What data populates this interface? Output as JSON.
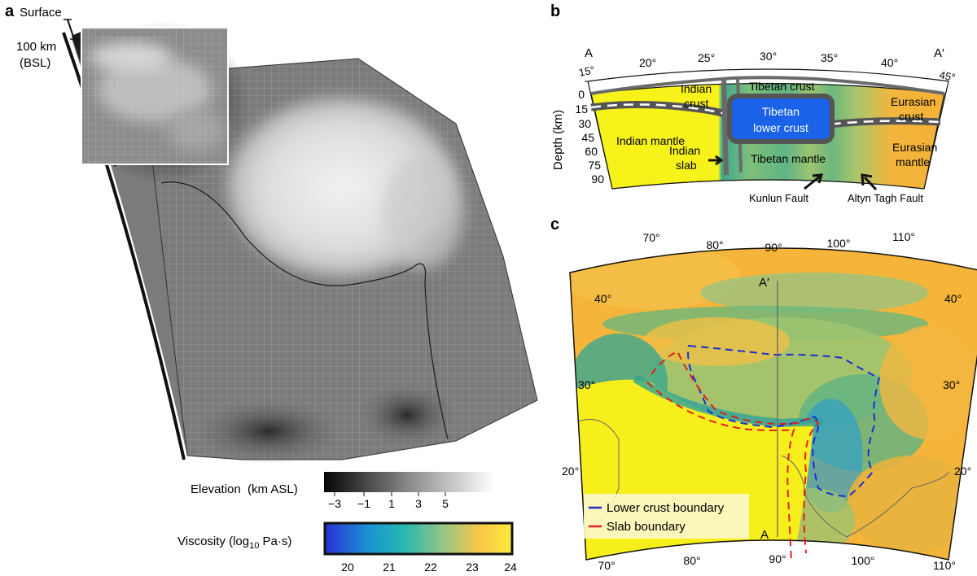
{
  "panels": {
    "a": {
      "letter": "a",
      "surface_label": "Surface",
      "depth_label_1": "100 km",
      "depth_label_2": "(BSL)",
      "elevation_bar": {
        "title": "Elevation  (km ASL)",
        "ticks": [
          "−3",
          "−1",
          "1",
          "3",
          "5"
        ]
      },
      "viscosity_bar": {
        "title_prefix": "Viscosity (log",
        "title_sub": "10",
        "title_suffix": " Pa·s)",
        "ticks": [
          "20",
          "21",
          "22",
          "23",
          "24"
        ],
        "colors": [
          "#2a2fd6",
          "#1b8fd6",
          "#25b8b0",
          "#8fc58a",
          "#f7c84a",
          "#fde93a"
        ]
      }
    },
    "b": {
      "letter": "b",
      "endpoint_left": "A",
      "endpoint_right": "A′",
      "lat_ticks": [
        "15°",
        "20°",
        "25°",
        "30°",
        "35°",
        "40°",
        "45°"
      ],
      "depth_ticks": [
        "0",
        "15",
        "30",
        "45",
        "60",
        "75",
        "90"
      ],
      "depth_axis_label": "Depth (km)",
      "labels": {
        "tibetan_crust": "Tibetan crust",
        "indian_crust_1": "Indian",
        "indian_crust_2": "crust",
        "tibetan_lower_1": "Tibetan",
        "tibetan_lower_2": "lower crust",
        "eurasian_crust_1": "Eurasian",
        "eurasian_crust_2": "crust",
        "indian_mantle": "Indian mantle",
        "indian_slab_1": "Indian",
        "indian_slab_2": "slab",
        "tibetan_mantle": "Tibetan mantle",
        "eurasian_mantle_1": "Eurasian",
        "eurasian_mantle_2": "mantle",
        "kunlun_fault": "Kunlun Fault",
        "altyn_tagh_fault": "Altyn Tagh Fault"
      }
    },
    "c": {
      "letter": "c",
      "lon_ticks_top": [
        "70°",
        "80°",
        "90°",
        "100°",
        "110°"
      ],
      "lon_ticks_bottom": [
        "70°",
        "80°",
        "90°",
        "100°",
        "110°"
      ],
      "lat_ticks_left": [
        "40°",
        "30°",
        "20°"
      ],
      "lat_ticks_right": [
        "40°",
        "30°",
        "20°"
      ],
      "profile_start": "A",
      "profile_end": "A′",
      "legend": [
        {
          "label": "Lower crust boundary",
          "color": "#1a2fd4"
        },
        {
          "label": "Slab boundary",
          "color": "#e0201c"
        }
      ]
    }
  }
}
